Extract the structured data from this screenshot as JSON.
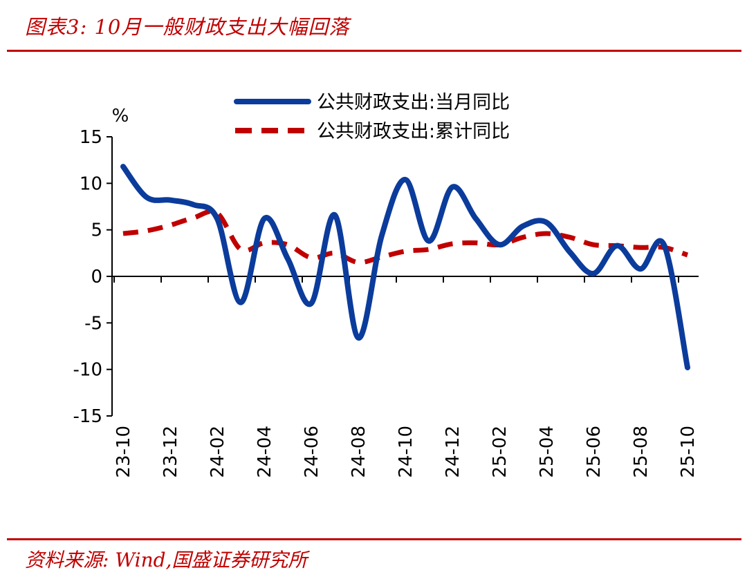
{
  "header": {
    "title": "图表3:  10月一般财政支出大幅回落"
  },
  "footer": {
    "source": "资料来源: Wind,国盛证券研究所"
  },
  "colors": {
    "accent": "#c00000",
    "series_monthly": "#0b3c9c",
    "series_cumulative": "#c00000"
  },
  "chart_data": {
    "type": "line",
    "title": "10月一般财政支出大幅回落",
    "ylabel": "%",
    "xlabel": "",
    "ylim": [
      -15,
      15
    ],
    "yticks": [
      "15",
      "10",
      "5",
      "0",
      "-5",
      "-10",
      "-15"
    ],
    "legend_position": "top-center",
    "x": [
      "23-10",
      "23-11",
      "23-12",
      "24-01",
      "24-02",
      "24-03",
      "24-04",
      "24-05",
      "24-06",
      "24-07",
      "24-08",
      "24-09",
      "24-10",
      "24-11",
      "24-12",
      "25-01",
      "25-02",
      "25-03",
      "25-04",
      "25-05",
      "25-06",
      "25-07",
      "25-08",
      "25-09",
      "25-10"
    ],
    "xtick_labels": [
      "23-10",
      "23-12",
      "24-02",
      "24-04",
      "24-06",
      "24-08",
      "24-10",
      "24-12",
      "25-02",
      "25-04",
      "25-06",
      "25-08",
      "25-10"
    ],
    "series": [
      {
        "name": "公共财政支出:当月同比",
        "style": "solid",
        "values": [
          11.8,
          8.5,
          8.2,
          7.7,
          6.2,
          -2.8,
          6.2,
          1.9,
          -2.9,
          6.6,
          -6.6,
          4.4,
          10.4,
          3.8,
          9.6,
          6.2,
          3.4,
          5.4,
          5.8,
          2.6,
          0.3,
          3.3,
          0.8,
          3.4,
          -9.8
        ]
      },
      {
        "name": "公共财政支出:累计同比",
        "style": "dashed",
        "values": [
          4.6,
          4.9,
          5.5,
          6.3,
          6.8,
          2.9,
          3.6,
          3.4,
          2.0,
          2.5,
          1.5,
          2.1,
          2.7,
          2.9,
          3.5,
          3.6,
          3.4,
          4.2,
          4.6,
          4.2,
          3.4,
          3.3,
          3.1,
          3.1,
          2.3
        ]
      }
    ]
  }
}
